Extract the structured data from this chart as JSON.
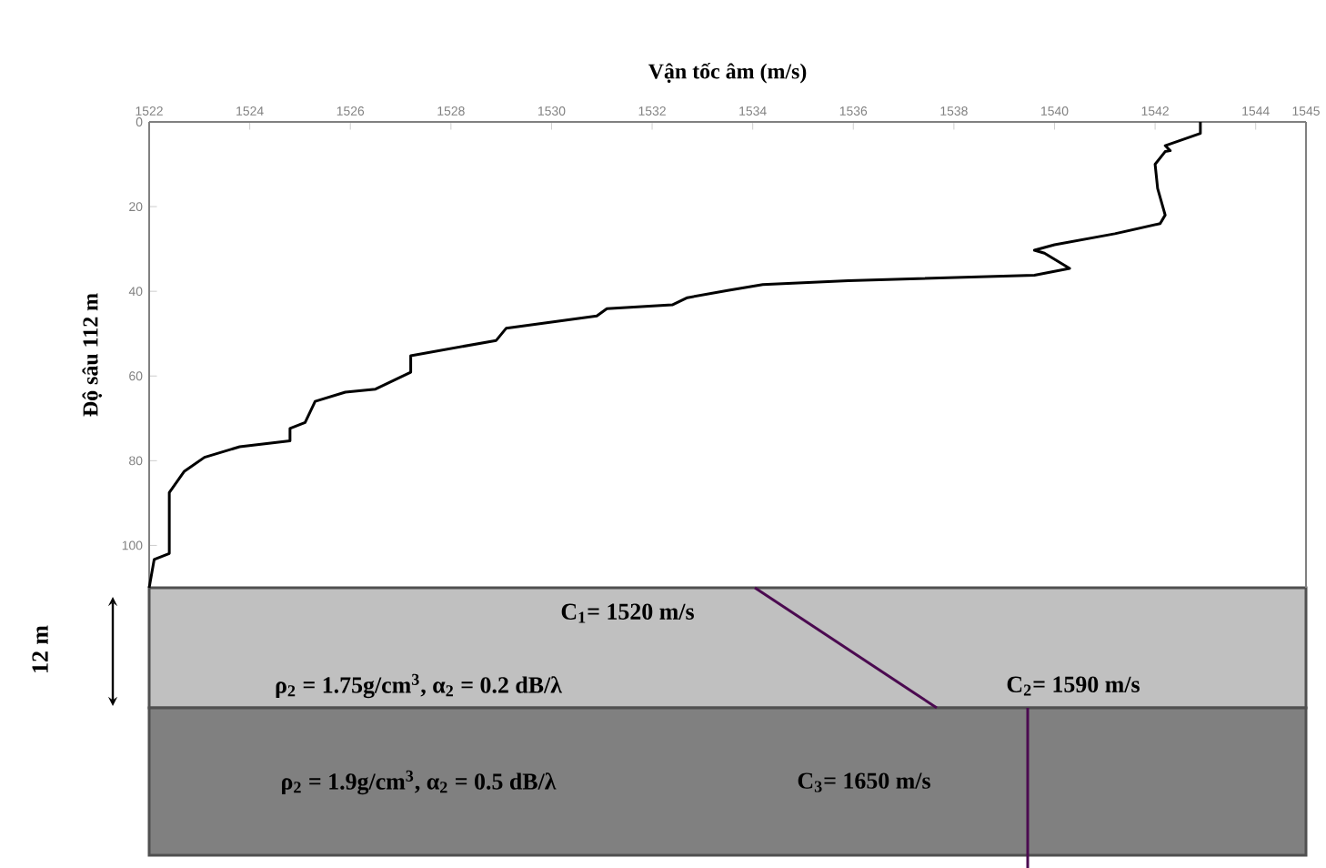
{
  "chart_data": {
    "type": "line",
    "xlabel": "Vận tốc âm (m/s)",
    "ylabel": "Độ sâu 112 m",
    "x": [
      1542.9,
      1542.9,
      1542.2,
      1542.3,
      1542.2,
      1542.0,
      1542.05,
      1542.2,
      1542.1,
      1541.2,
      1540.0,
      1539.6,
      1539.8,
      1540.3,
      1539.6,
      1535.9,
      1534.2,
      1533.5,
      1532.7,
      1532.4,
      1531.1,
      1530.9,
      1529.1,
      1528.9,
      1527.2,
      1527.2,
      1526.5,
      1525.9,
      1525.3,
      1525.1,
      1524.8,
      1524.8,
      1523.8,
      1523.1,
      1522.7,
      1522.4,
      1522.4,
      1522.1,
      1522.0
    ],
    "series": [
      {
        "color": "#000000",
        "values": [
          0,
          2.7,
          5.6,
          6.8,
          7,
          10,
          15.7,
          22,
          24,
          26.4,
          29,
          30.3,
          31,
          34.6,
          36.2,
          37.5,
          38.4,
          39.8,
          41.5,
          43.2,
          44.1,
          45.8,
          48.7,
          51.6,
          55.2,
          59.1,
          63.1,
          63.8,
          66,
          71,
          72.4,
          75.3,
          76.7,
          79.2,
          82.5,
          87.5,
          101.9,
          103.3,
          110
        ]
      }
    ],
    "xlim": [
      1522,
      1545
    ],
    "xticks": [
      1522,
      1524,
      1526,
      1528,
      1530,
      1532,
      1534,
      1536,
      1538,
      1540,
      1542,
      1544,
      1545
    ],
    "ylim": [
      110,
      0
    ],
    "yticks": [
      0,
      20,
      40,
      60,
      80,
      100
    ],
    "marker": "none",
    "line_style": "solid",
    "grid": false,
    "annotations": [
      "C$_{1}$= 1520 m/s",
      "ρ$_{2}$ = 1.75g/cm$^{3}$, α$_{2}$ = 0.2 dB/λ",
      "C$_{2}$= 1590 m/s",
      "ρ$_{2}$ = 1.9g/cm$^{3}$, α$_{2}$ = 0.5 dB/λ",
      "C$_{3}$= 1650 m/s",
      "12 m"
    ]
  }
}
